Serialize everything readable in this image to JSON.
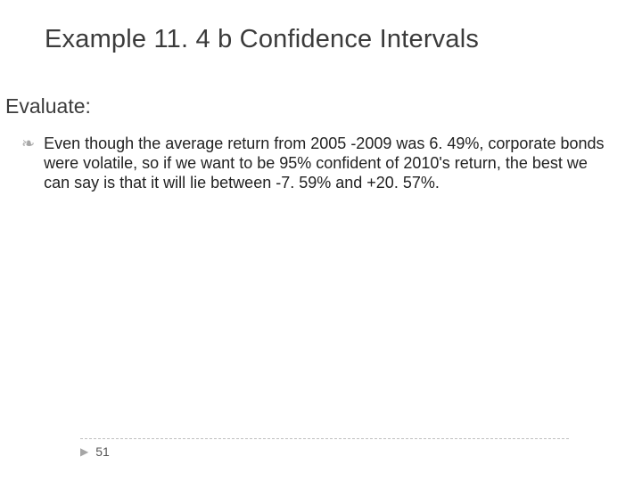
{
  "title": "Example 11. 4 b Confidence Intervals",
  "subhead": "Evaluate:",
  "bullet": {
    "glyph": "❧",
    "text": "Even though the average return from 2005 -2009 was 6. 49%, corporate bonds were volatile, so if we want to be 95% confident of 2010's return, the best we can say is that it will lie between -7. 59% and +20. 57%."
  },
  "page_number": "51",
  "colors": {
    "title_color": "#3b3b3b",
    "body_color": "#222222",
    "accent_gray": "#a6a6a6",
    "divider": "#bfbfbf",
    "background": "#ffffff"
  },
  "fonts": {
    "title_size_pt": 29,
    "subhead_size_pt": 23,
    "body_size_pt": 18,
    "page_size_pt": 14
  }
}
